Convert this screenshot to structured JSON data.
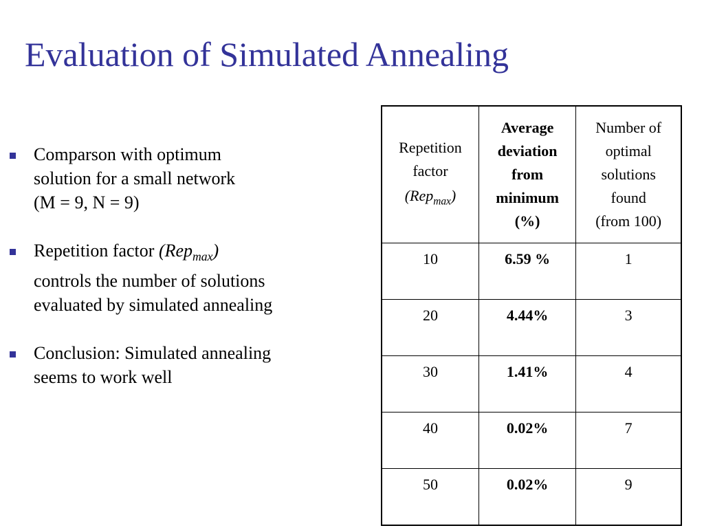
{
  "slide": {
    "title": "Evaluation of Simulated Annealing",
    "title_color": "#333399",
    "bullet_color": "#333399"
  },
  "bullets": [
    {
      "line1": "Comparson with optimum",
      "line2": "solution for a small network",
      "line3": "(M = 9, N = 9)"
    },
    {
      "prefix": "Repetition factor ",
      "rep_base": "(Rep",
      "rep_sub": "max",
      "rep_close": ")",
      "line2": "controls the number of solutions",
      "line3": "evaluated by simulated annealing"
    },
    {
      "line1": "Conclusion: Simulated annealing",
      "line2": "seems to work well"
    }
  ],
  "table": {
    "headers": {
      "rep": {
        "line1": "Repetition",
        "line2": "factor",
        "rep_base": "(Rep",
        "rep_sub": "max",
        "rep_close": ")"
      },
      "dev": {
        "line1": "Average",
        "line2": "deviation",
        "line3": "from",
        "line4": "minimum",
        "line5": "(%)"
      },
      "opt": {
        "line1": "Number of",
        "line2": "optimal",
        "line3": "solutions",
        "line4": "found",
        "line5": "(from 100)"
      }
    },
    "rows": [
      {
        "rep": "10",
        "dev": "6.59 %",
        "opt": "1"
      },
      {
        "rep": "20",
        "dev": "4.44%",
        "opt": "3"
      },
      {
        "rep": "30",
        "dev": "1.41%",
        "opt": "4"
      },
      {
        "rep": "40",
        "dev": "0.02%",
        "opt": "7"
      },
      {
        "rep": "50",
        "dev": "0.02%",
        "opt": "9"
      }
    ]
  }
}
